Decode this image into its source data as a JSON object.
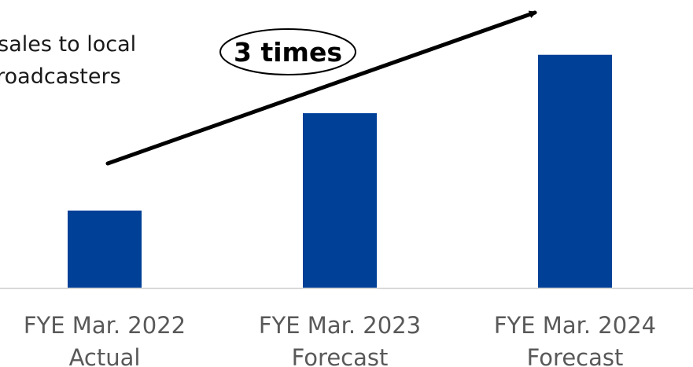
{
  "legend": {
    "line1": "t sales to local",
    "line2": "broadcasters"
  },
  "callout": {
    "label": "3 times"
  },
  "chart_data": {
    "type": "bar",
    "categories": [
      [
        "FYE Mar. 2022",
        "Actual"
      ],
      [
        "FYE Mar. 2023",
        "Forecast"
      ],
      [
        "FYE Mar. 2024",
        "Forecast"
      ]
    ],
    "values": [
      1,
      2.25,
      3
    ],
    "ylim": [
      0,
      3.3
    ],
    "grid": false,
    "bar_color": "#004097",
    "axis_color": "#d9d9d9",
    "trend_arrow": true
  }
}
